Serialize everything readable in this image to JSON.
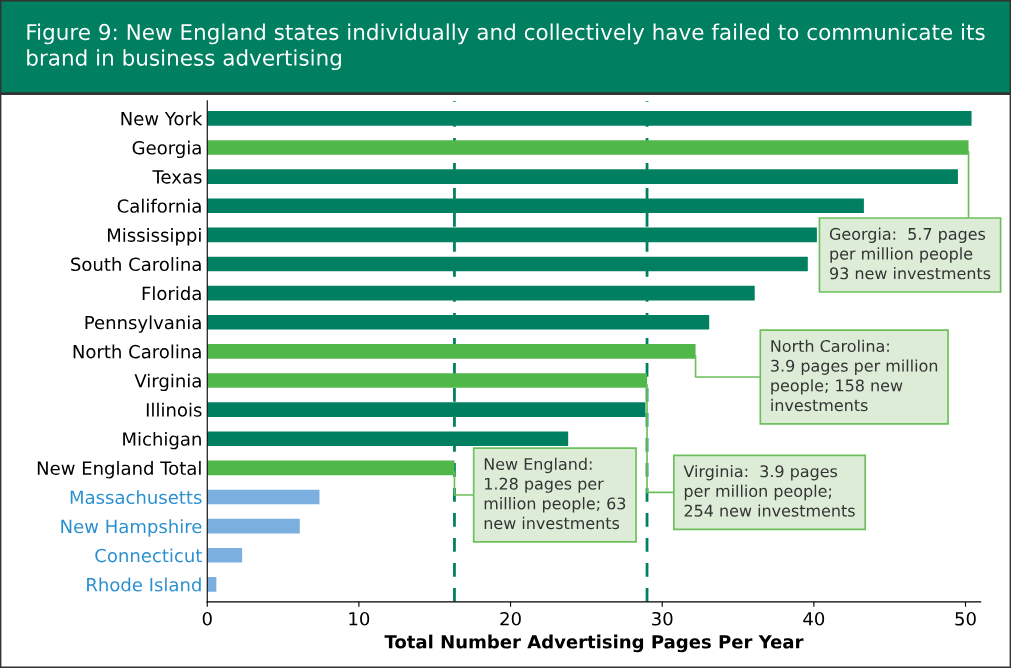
{
  "chart_data": {
    "type": "bar",
    "orientation": "horizontal",
    "title": "Figure 9: New England states individually and collectively have failed to communicate its\nbrand in business advertising",
    "xlabel": "Total Number Advertising Pages Per Year",
    "categories": [
      "New York",
      "Georgia",
      "Texas",
      "California",
      "Mississippi",
      "South Carolina",
      "Florida",
      "Pennsylvania",
      "North Carolina",
      "Virginia",
      "Illinois",
      "Michigan",
      "New England Total",
      "Massachusetts",
      "New Hampshire",
      "Connecticut",
      "Rhode Island"
    ],
    "values": [
      50.4,
      50.2,
      49.5,
      43.3,
      40.2,
      39.6,
      36.1,
      33.1,
      32.2,
      29.0,
      28.9,
      23.8,
      16.3,
      7.4,
      6.1,
      2.3,
      0.6
    ],
    "colors": [
      "#008060",
      "#50b848",
      "#008060",
      "#008060",
      "#008060",
      "#008060",
      "#008060",
      "#008060",
      "#50b848",
      "#50b848",
      "#008060",
      "#008060",
      "#50b848",
      "#7aafe0",
      "#7aafe0",
      "#7aafe0",
      "#7aafe0"
    ],
    "xlim": [
      0,
      51
    ],
    "xticks": [
      0,
      10,
      20,
      30,
      40,
      50
    ],
    "grid": false,
    "ref_lines": [
      {
        "axis": "x",
        "value": 16.3,
        "color": "#008060",
        "line_style": "dashed"
      },
      {
        "axis": "x",
        "value": 29.0,
        "color": "#008060",
        "line_style": "dashed"
      }
    ],
    "annotations": [
      {
        "text": "Georgia:  5.7 pages\nper million people\n93 new investments",
        "x": 50.2,
        "y": "Georgia"
      },
      {
        "text": "North Carolina:\n3.9 pages per million\npeople; 158 new\ninvestments",
        "x": 32.2,
        "y": "North Carolina"
      },
      {
        "text": "New England:\n1.28 pages per\nmillion people; 63\nnew investments",
        "x": 16.3,
        "y": "New England Total"
      },
      {
        "text": "Virginia:  3.9 pages\nper million people;\n254 new investments",
        "x": 29.0,
        "y": "Virginia"
      }
    ]
  }
}
